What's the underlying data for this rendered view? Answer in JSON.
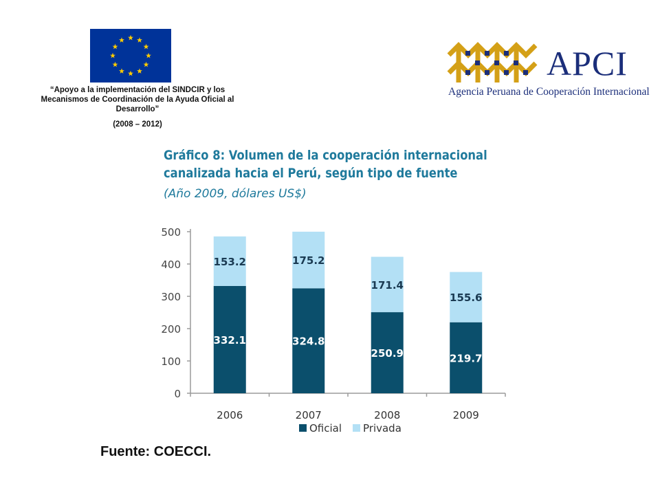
{
  "header": {
    "eu_caption": "“Apoyo a la implementación del SINDCIR y los Mecanismos de Coordinación de la Ayuda Oficial al Desarrollo”",
    "eu_years": "(2008 – 2012)",
    "apci_name": "APCI",
    "apci_subtitle": "Agencia Peruana de Cooperación Internacional"
  },
  "colors": {
    "eu_blue": "#003399",
    "eu_star": "#ffcc00",
    "apci_gold": "#d4a017",
    "apci_navy": "#1b2e7a",
    "title": "#1f7a9c",
    "oficial": "#0b4f6c",
    "privada": "#b3e0f5"
  },
  "footer": {
    "source": "Fuente: COECCI."
  },
  "chart_data": {
    "type": "bar",
    "stacked": true,
    "title": "Gráfico 8: Volumen de la cooperación internacional canalizada hacia el Perú, según tipo de fuente",
    "subtitle": "(Año 2009, dólares US$)",
    "categories": [
      "2006",
      "2007",
      "2008",
      "2009"
    ],
    "series": [
      {
        "name": "Oficial",
        "values": [
          332.1,
          324.8,
          250.9,
          219.7
        ]
      },
      {
        "name": "Privada",
        "values": [
          153.2,
          175.2,
          171.4,
          155.6
        ]
      }
    ],
    "y_ticks": [
      "0",
      "100",
      "200",
      "300",
      "400",
      "500"
    ],
    "ylim": [
      0,
      500
    ],
    "xlabel": "",
    "ylabel": "",
    "legend": "bottom",
    "grid": false
  }
}
